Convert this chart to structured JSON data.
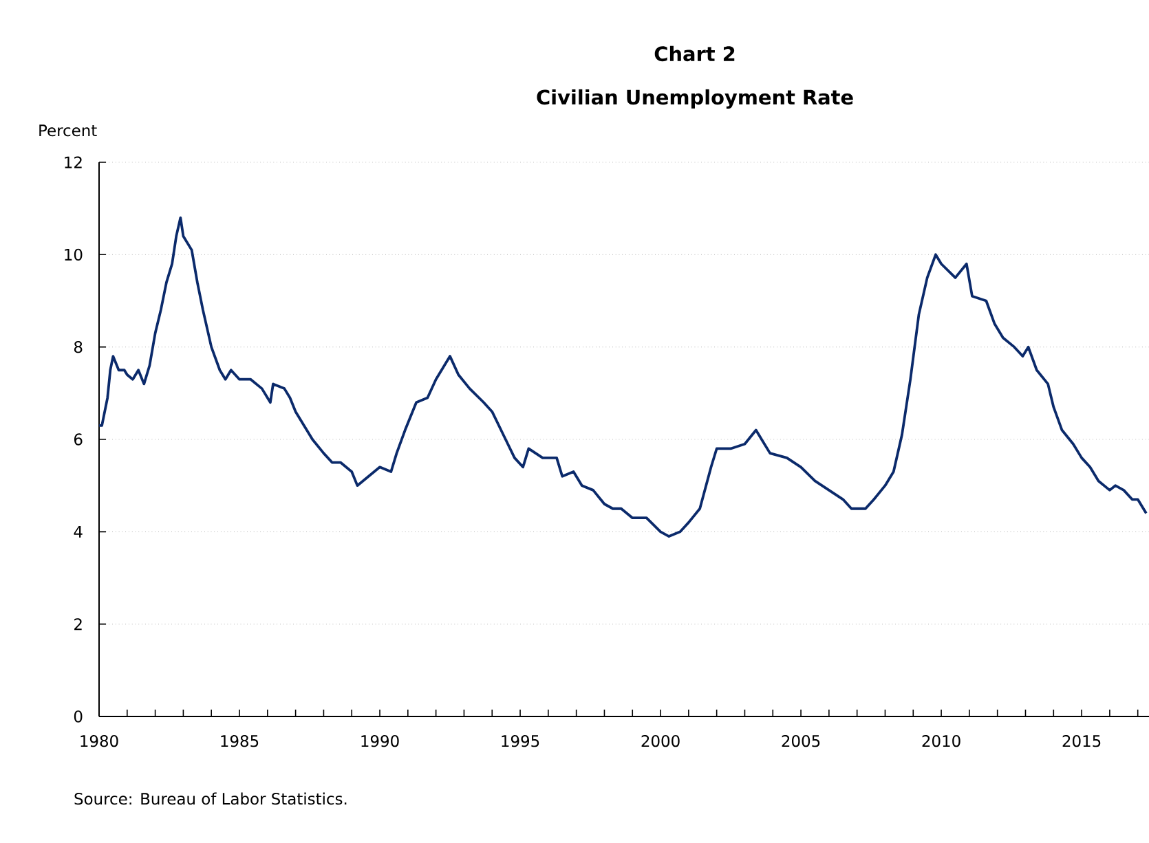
{
  "chart_data": {
    "type": "line",
    "title": "Chart 2",
    "subtitle": "Civilian Unemployment Rate",
    "ylabel": "Percent",
    "annotations": [
      "Source:  Bureau of Labor Statistics."
    ],
    "x": [
      1980.0,
      1980.1,
      1980.3,
      1980.4,
      1980.5,
      1980.7,
      1980.9,
      1981.0,
      1981.2,
      1981.4,
      1981.6,
      1981.8,
      1982.0,
      1982.2,
      1982.4,
      1982.6,
      1982.75,
      1982.9,
      1983.0,
      1983.3,
      1983.5,
      1983.7,
      1984.0,
      1984.3,
      1984.5,
      1984.7,
      1985.0,
      1985.4,
      1985.8,
      1986.1,
      1986.2,
      1986.6,
      1986.8,
      1987.0,
      1987.3,
      1987.6,
      1988.0,
      1988.3,
      1988.6,
      1989.0,
      1989.2,
      1989.6,
      1990.0,
      1990.4,
      1990.6,
      1990.9,
      1991.3,
      1991.7,
      1992.0,
      1992.5,
      1992.8,
      1993.2,
      1993.7,
      1994.0,
      1994.4,
      1994.8,
      1995.1,
      1995.3,
      1995.8,
      1996.3,
      1996.5,
      1996.9,
      1997.2,
      1997.6,
      1998.0,
      1998.3,
      1998.6,
      1999.0,
      1999.5,
      2000.0,
      2000.3,
      2000.7,
      2001.0,
      2001.4,
      2001.8,
      2002.0,
      2002.5,
      2003.0,
      2003.4,
      2003.6,
      2003.9,
      2004.5,
      2005.0,
      2005.5,
      2006.0,
      2006.5,
      2006.8,
      2007.3,
      2007.6,
      2008.0,
      2008.3,
      2008.6,
      2008.9,
      2009.2,
      2009.5,
      2009.8,
      2010.0,
      2010.5,
      2010.9,
      2011.1,
      2011.6,
      2011.9,
      2012.2,
      2012.6,
      2012.9,
      2013.1,
      2013.4,
      2013.8,
      2014.0,
      2014.3,
      2014.7,
      2015.0,
      2015.3,
      2015.6,
      2016.0,
      2016.2,
      2016.5,
      2016.8,
      2017.0,
      2017.3
    ],
    "series": [
      {
        "color": "#0b2a6b",
        "values": [
          6.3,
          6.3,
          6.9,
          7.5,
          7.8,
          7.5,
          7.5,
          7.4,
          7.3,
          7.5,
          7.2,
          7.6,
          8.3,
          8.8,
          9.4,
          9.8,
          10.4,
          10.8,
          10.4,
          10.1,
          9.4,
          8.8,
          8.0,
          7.5,
          7.3,
          7.5,
          7.3,
          7.3,
          7.1,
          6.8,
          7.2,
          7.1,
          6.9,
          6.6,
          6.3,
          6.0,
          5.7,
          5.5,
          5.5,
          5.3,
          5.0,
          5.2,
          5.4,
          5.3,
          5.7,
          6.2,
          6.8,
          6.9,
          7.3,
          7.8,
          7.4,
          7.1,
          6.8,
          6.6,
          6.1,
          5.6,
          5.4,
          5.8,
          5.6,
          5.6,
          5.2,
          5.3,
          5.0,
          4.9,
          4.6,
          4.5,
          4.5,
          4.3,
          4.3,
          4.0,
          3.9,
          4.0,
          4.2,
          4.5,
          5.4,
          5.8,
          5.8,
          5.9,
          6.2,
          6.0,
          5.7,
          5.6,
          5.4,
          5.1,
          4.9,
          4.7,
          4.5,
          4.5,
          4.7,
          5.0,
          5.3,
          6.1,
          7.3,
          8.7,
          9.5,
          10.0,
          9.8,
          9.5,
          9.8,
          9.1,
          9.0,
          8.5,
          8.2,
          8.0,
          7.8,
          8.0,
          7.5,
          7.2,
          6.7,
          6.2,
          5.9,
          5.6,
          5.4,
          5.1,
          4.9,
          5.0,
          4.9,
          4.7,
          4.7,
          4.4
        ]
      }
    ],
    "xlim": [
      1980,
      2017.4
    ],
    "ylim": [
      0,
      12
    ],
    "xticks": [
      1980,
      {
        "value": 1981,
        "label": null
      },
      {
        "value": 1982,
        "label": null
      },
      {
        "value": 1983,
        "label": null
      },
      {
        "value": 1984,
        "label": null
      },
      1985,
      {
        "value": 1986,
        "label": null
      },
      {
        "value": 1987,
        "label": null
      },
      {
        "value": 1988,
        "label": null
      },
      {
        "value": 1989,
        "label": null
      },
      1990,
      {
        "value": 1991,
        "label": null
      },
      {
        "value": 1992,
        "label": null
      },
      {
        "value": 1993,
        "label": null
      },
      {
        "value": 1994,
        "label": null
      },
      1995,
      {
        "value": 1996,
        "label": null
      },
      {
        "value": 1997,
        "label": null
      },
      {
        "value": 1998,
        "label": null
      },
      {
        "value": 1999,
        "label": null
      },
      2000,
      {
        "value": 2001,
        "label": null
      },
      {
        "value": 2002,
        "label": null
      },
      {
        "value": 2003,
        "label": null
      },
      {
        "value": 2004,
        "label": null
      },
      2005,
      {
        "value": 2006,
        "label": null
      },
      {
        "value": 2007,
        "label": null
      },
      {
        "value": 2008,
        "label": null
      },
      {
        "value": 2009,
        "label": null
      },
      2010,
      {
        "value": 2011,
        "label": null
      },
      {
        "value": 2012,
        "label": null
      },
      {
        "value": 2013,
        "label": null
      },
      {
        "value": 2014,
        "label": null
      },
      2015,
      {
        "value": 2016,
        "label": null
      },
      {
        "value": 2017,
        "label": null
      }
    ],
    "yticks": [
      0,
      2,
      4,
      6,
      8,
      10,
      12
    ],
    "grid": "y",
    "marker": "none",
    "line_style": "solid"
  }
}
